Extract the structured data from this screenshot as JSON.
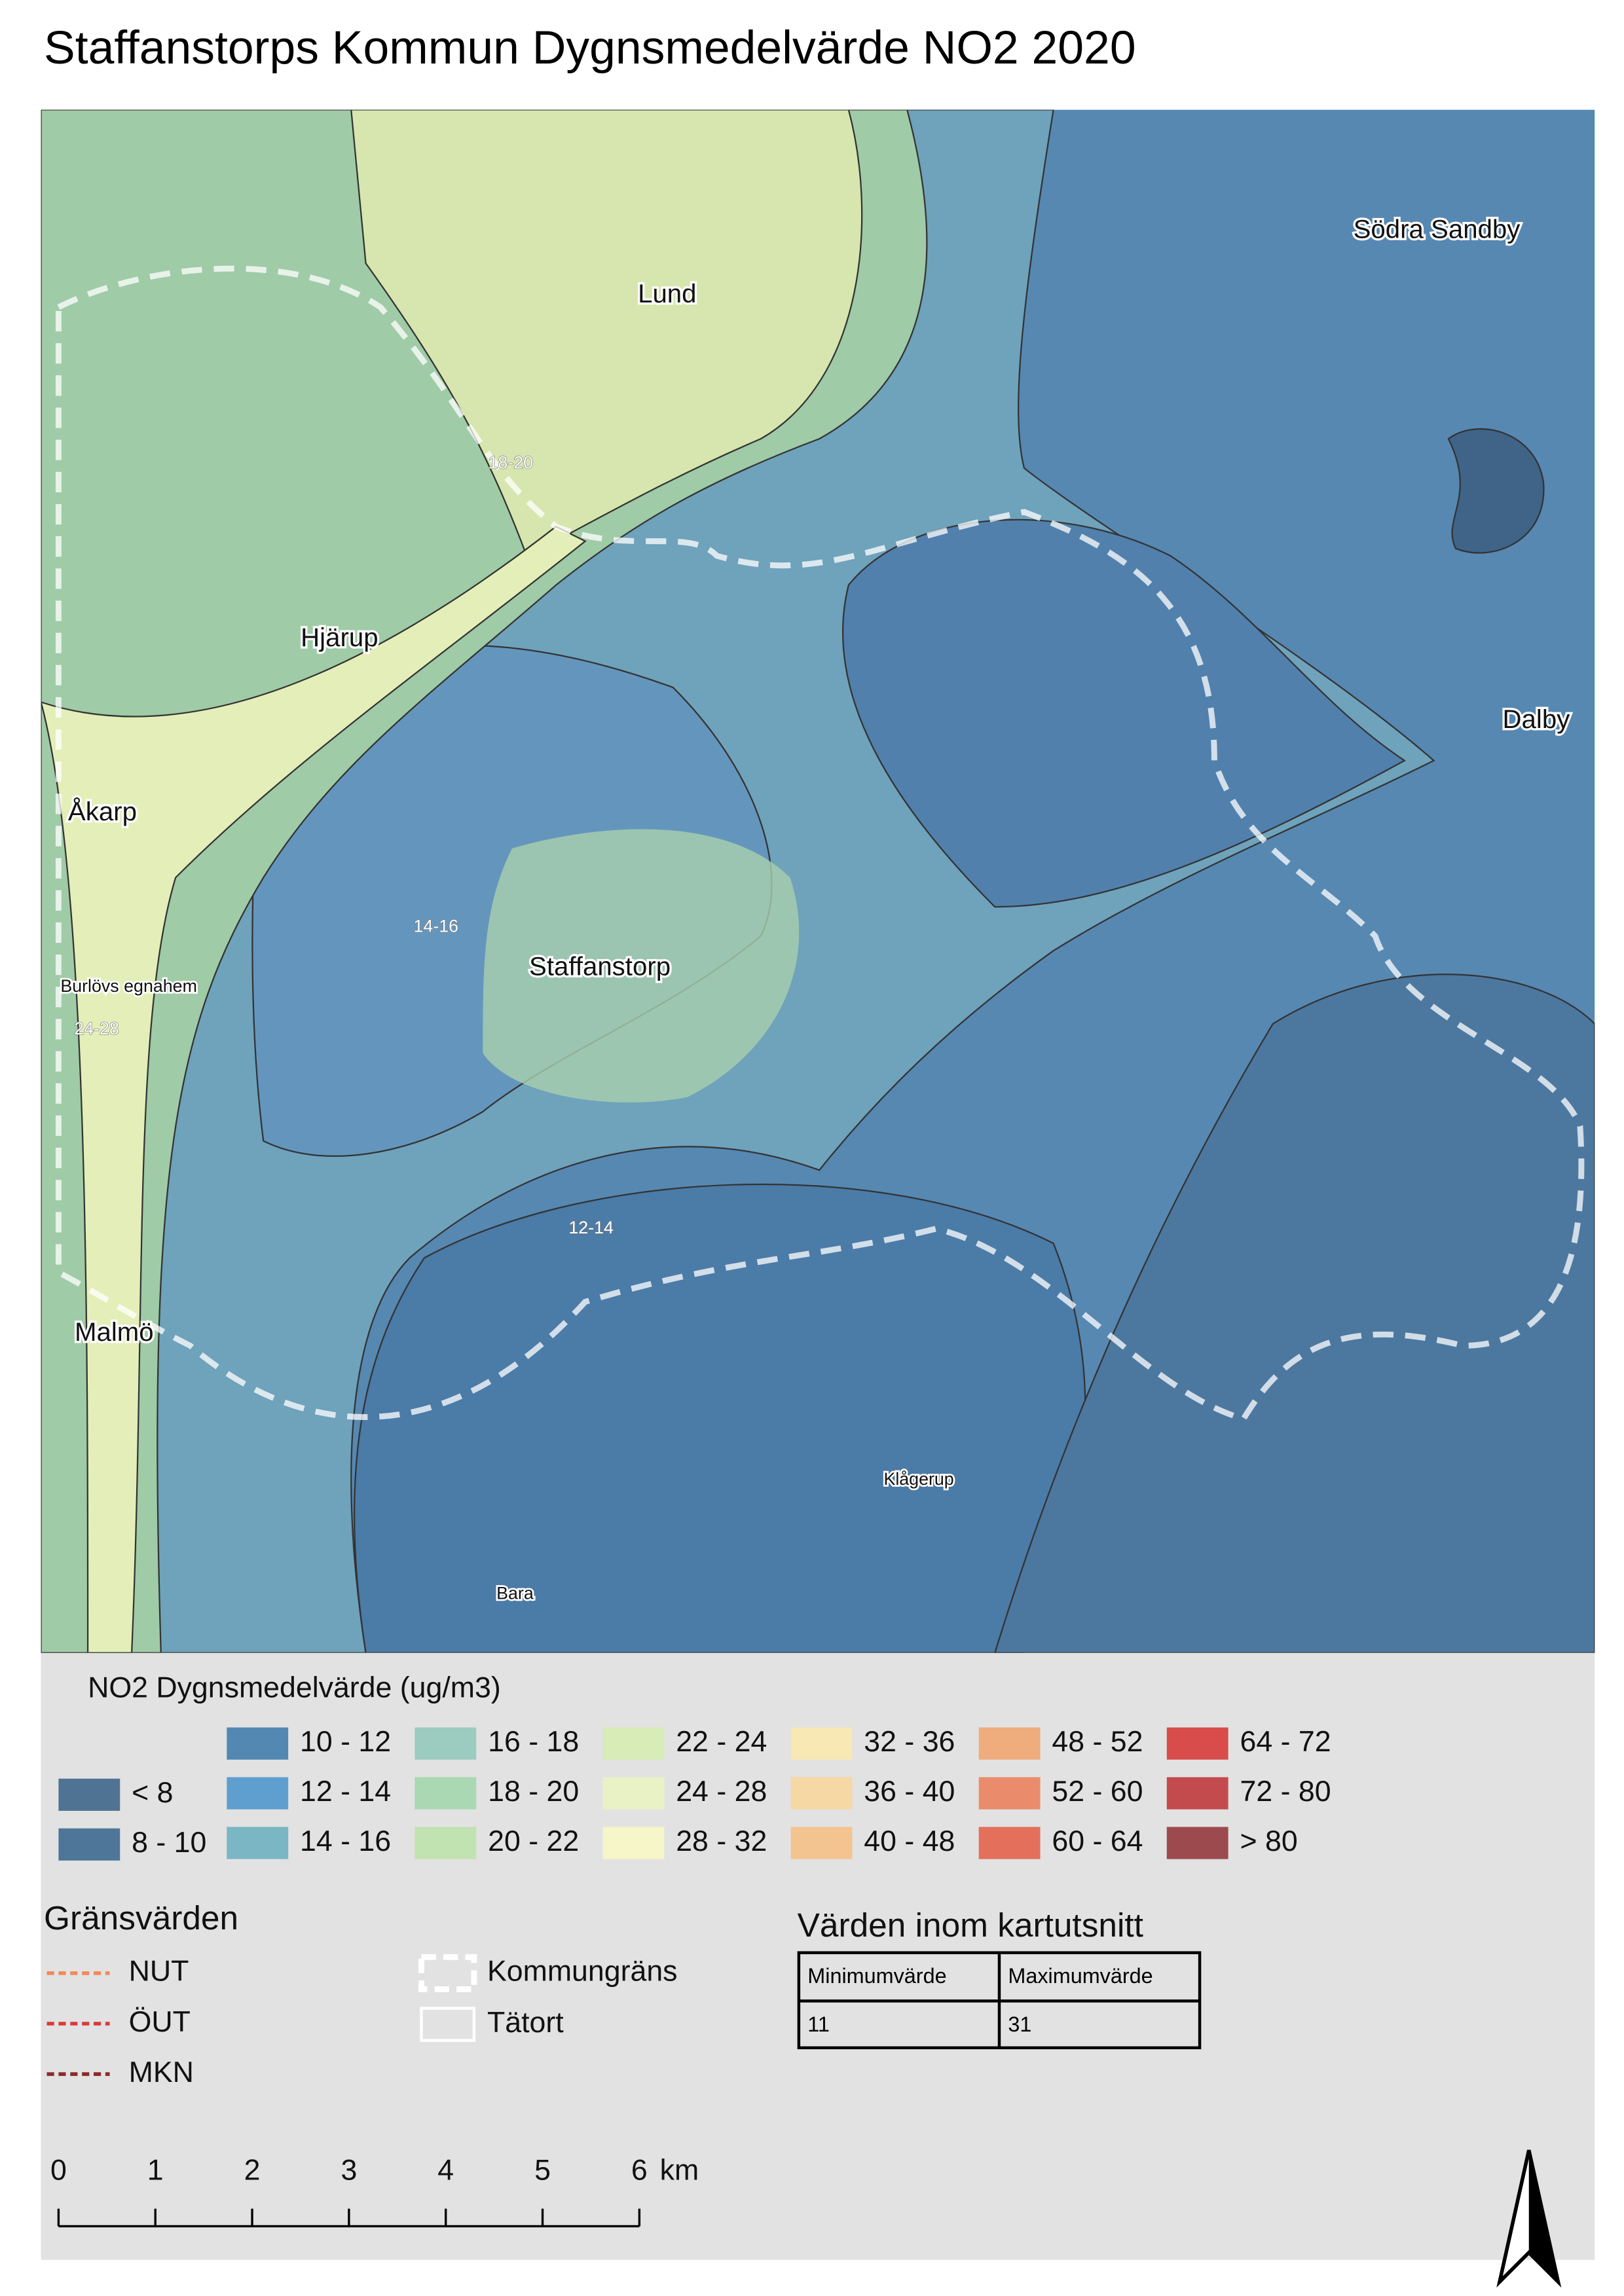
{
  "title": "Staffanstorps Kommun Dygnsmedelvärde NO2 2020",
  "map": {
    "places": [
      "Lund",
      "Södra Sandby",
      "Hjärup",
      "Dalby",
      "Åkarp",
      "Staffanstorp",
      "Burlövs egnahem",
      "Malmö",
      "Klågerup",
      "Bara"
    ],
    "contour_labels": [
      "18-20",
      "14-16",
      "24-28",
      "12-14"
    ]
  },
  "legend": {
    "title": "NO2 Dygnsmedelvärde (ug/m3)",
    "classes": [
      {
        "label": "< 8",
        "color": "#4f7392"
      },
      {
        "label": "8 - 10",
        "color": "#4e7699"
      },
      {
        "label": "10 - 12",
        "color": "#5288b2"
      },
      {
        "label": "12 - 14",
        "color": "#5f9fcf"
      },
      {
        "label": "14 - 16",
        "color": "#7ab6c4"
      },
      {
        "label": "16 - 18",
        "color": "#9ccbbf"
      },
      {
        "label": "18 - 20",
        "color": "#a9d8b2"
      },
      {
        "label": "20 - 22",
        "color": "#c0e3b1"
      },
      {
        "label": "22 - 24",
        "color": "#d7ecb6"
      },
      {
        "label": "24 - 28",
        "color": "#e8f2c4"
      },
      {
        "label": "28 - 32",
        "color": "#f6f6c8"
      },
      {
        "label": "32 - 36",
        "color": "#f7e8b4"
      },
      {
        "label": "36 - 40",
        "color": "#f6d8a4"
      },
      {
        "label": "40 - 48",
        "color": "#f4c490"
      },
      {
        "label": "48 - 52",
        "color": "#efac7c"
      },
      {
        "label": "52 - 60",
        "color": "#ea8c6c"
      },
      {
        "label": "60 - 64",
        "color": "#e4705c"
      },
      {
        "label": "64 - 72",
        "color": "#d84c4c"
      },
      {
        "label": "72 - 80",
        "color": "#c34b4e"
      },
      {
        "label": "> 80",
        "color": "#9c4a4e"
      }
    ]
  },
  "limits": {
    "title": "Gränsvärden",
    "items": [
      {
        "label": "NUT",
        "color": "#f08a5a"
      },
      {
        "label": "ÖUT",
        "color": "#d93a3a"
      },
      {
        "label": "MKN",
        "color": "#8b2a2a"
      }
    ],
    "other": [
      "Kommungräns",
      "Tätort"
    ]
  },
  "table": {
    "title": "Värden inom kartutsnitt",
    "headers": [
      "Minimumvärde",
      "Maximumvärde"
    ],
    "rows": [
      [
        11,
        31
      ]
    ]
  },
  "scale_bar": {
    "ticks": [
      0,
      1,
      2,
      3,
      4,
      5,
      6
    ],
    "unit": "km"
  }
}
